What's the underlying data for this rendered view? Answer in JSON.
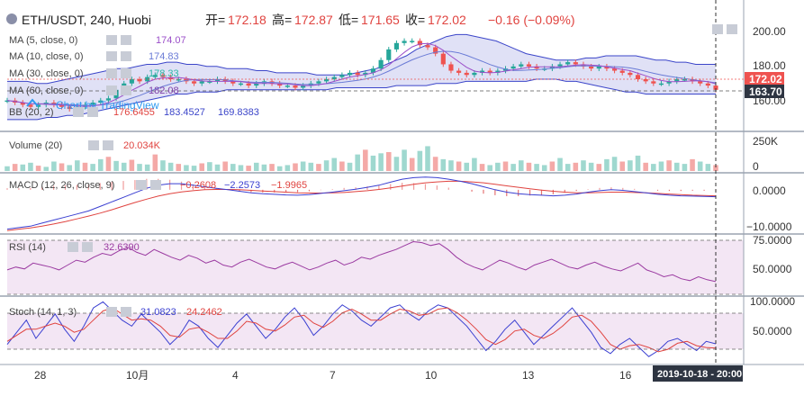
{
  "header": {
    "symbol": "ETH/USDT, 240, Huobi",
    "open_label": "开=",
    "open": "172.18",
    "high_label": "高=",
    "high": "172.87",
    "low_label": "低=",
    "low": "171.65",
    "close_label": "收=",
    "close": "172.02",
    "change": "−0.16 (−0.09%)"
  },
  "indicators": [
    {
      "label": "MA (5, close, 0)",
      "value": "174.07",
      "color": "#9b4fc9"
    },
    {
      "label": "MA (10, close, 0)",
      "value": "174.83",
      "color": "#6a7bd6"
    },
    {
      "label": "MA (30, close, 0)",
      "value": "178.33",
      "color": "#2db8a6"
    },
    {
      "label": "MA (60, close, 0)",
      "value": "182.08",
      "color": "#7e3fa8"
    }
  ],
  "bb": {
    "label": "BB (20, 2)",
    "v1": "176.6455",
    "v2": "183.4527",
    "v3": "169.8383"
  },
  "watermark": "Chart by TradingView",
  "price_axis": {
    "ticks": [
      "200.00",
      "180.00",
      "160.00"
    ],
    "tick_values": [
      200,
      180,
      160
    ],
    "last_price": "172.02",
    "cursor_price": "163.70"
  },
  "volume": {
    "label": "Volume (20)",
    "value": "20.034K",
    "ticks": [
      "250K",
      "0"
    ]
  },
  "macd": {
    "label": "MACD (12, 26, close, 9)",
    "v1": "−0.2608",
    "v2": "−2.2573",
    "v3": "−1.9965",
    "ticks": [
      "0.0000",
      "−10.0000"
    ]
  },
  "rsi": {
    "label": "RSI (14)",
    "value": "32.6390",
    "ticks": [
      "75.0000",
      "50.0000"
    ]
  },
  "stoch": {
    "label": "Stoch (14, 1, 3)",
    "v1": "31.0823",
    "v2": "24.2462",
    "ticks": [
      "100.0000",
      "50.0000"
    ]
  },
  "time_axis": {
    "ticks": [
      "28",
      "10月",
      "4",
      "7",
      "10",
      "13",
      "16"
    ],
    "cursor_label": "2019-10-18 - 20:00"
  },
  "colors": {
    "up": "#26a69a",
    "down": "#ef5350",
    "bb_fill": "#c7c9ee",
    "bb_line": "#3b45c9",
    "rsi_bg": "#f3e6f4",
    "stoch_bg": "#f3e6f4",
    "macd_line": "#3a3fd1",
    "signal_line": "#e0433f"
  },
  "chart_data": {
    "type": "line",
    "x_ticks": [
      "28",
      "10月",
      "4",
      "7",
      "10",
      "13",
      "16"
    ],
    "price": {
      "ylim": [
        155,
        210
      ],
      "close": [
        167,
        166,
        165,
        164,
        165,
        166,
        165,
        164,
        163,
        164,
        165,
        166,
        167,
        168,
        172,
        175,
        177,
        176,
        178,
        179,
        178,
        177,
        177,
        176,
        175,
        176,
        176,
        177,
        176,
        175,
        175,
        174,
        175,
        176,
        175,
        174,
        174,
        173,
        174,
        175,
        176,
        177,
        178,
        179,
        180,
        179,
        180,
        182,
        186,
        191,
        194,
        195,
        195,
        193,
        192,
        189,
        184,
        181,
        180,
        179,
        180,
        181,
        180,
        181,
        182,
        183,
        184,
        183,
        182,
        182,
        183,
        184,
        185,
        184,
        183,
        182,
        183,
        182,
        181,
        180,
        179,
        177,
        176,
        175,
        175,
        176,
        177,
        177,
        176,
        175,
        174,
        172
      ],
      "bb_upper": [
        176,
        176,
        176,
        175,
        175,
        176,
        177,
        178,
        179,
        180,
        181,
        182,
        182,
        183,
        184,
        184,
        185,
        185,
        184,
        184,
        183,
        183,
        182,
        182,
        182,
        181,
        181,
        180,
        180,
        180,
        180,
        179,
        179,
        179,
        179,
        180,
        181,
        182,
        184,
        186,
        188,
        191,
        193,
        195,
        197,
        198,
        198,
        197,
        196,
        195,
        193,
        191,
        189,
        188,
        187,
        186,
        186,
        186,
        187,
        187,
        188,
        188,
        188,
        188,
        187,
        186,
        186,
        185,
        185,
        184,
        184,
        184
      ],
      "bb_lower": [
        158,
        158,
        158,
        158,
        159,
        159,
        160,
        160,
        161,
        162,
        163,
        164,
        165,
        166,
        167,
        168,
        169,
        170,
        170,
        171,
        171,
        171,
        172,
        172,
        172,
        172,
        172,
        172,
        172,
        172,
        172,
        172,
        172,
        173,
        173,
        173,
        173,
        173,
        173,
        174,
        174,
        174,
        174,
        175,
        175,
        175,
        176,
        176,
        176,
        176,
        176,
        176,
        176,
        177,
        177,
        177,
        176,
        176,
        175,
        174,
        173,
        172,
        171,
        171,
        170,
        170,
        170,
        170,
        170,
        170,
        170,
        170
      ]
    },
    "volume": {
      "ylim": [
        0,
        320
      ],
      "values": [
        40,
        60,
        55,
        70,
        45,
        35,
        80,
        65,
        50,
        90,
        70,
        60,
        100,
        120,
        85,
        70,
        95,
        60,
        55,
        140,
        90,
        70,
        60,
        50,
        45,
        65,
        75,
        55,
        80,
        60,
        50,
        45,
        70,
        55,
        60,
        40,
        50,
        65,
        80,
        70,
        60,
        90,
        110,
        80,
        70,
        140,
        180,
        130,
        150,
        160,
        120,
        180,
        110,
        170,
        210,
        120,
        100,
        90,
        80,
        70,
        110,
        60,
        50,
        70,
        80,
        60,
        90,
        70,
        60,
        50,
        80,
        110,
        60,
        70,
        90,
        70,
        60,
        100,
        120,
        80,
        90,
        130,
        70,
        60,
        80,
        90,
        70,
        60,
        100,
        80,
        60,
        50
      ]
    },
    "macd": {
      "ylim": [
        -14,
        5
      ],
      "macd": [
        -13,
        -12.5,
        -12,
        -11,
        -10,
        -9,
        -8,
        -7,
        -5.5,
        -4,
        -2.5,
        -1,
        0.5,
        1.5,
        2,
        2,
        1.5,
        1,
        0.5,
        0,
        -0.5,
        -1,
        -1.3,
        -1.5,
        -1.7,
        -1.8,
        -1.6,
        -1.2,
        -0.8,
        -0.3,
        0.2,
        0.8,
        1.5,
        2.5,
        3.5,
        4,
        4.2,
        4,
        3.5,
        2.8,
        2,
        1,
        0,
        -0.8,
        -1.3,
        -1.6,
        -1.8,
        -2,
        -1.8,
        -1.4,
        -0.8,
        -0.3,
        0,
        -0.2,
        -0.6,
        -1,
        -1.5,
        -1.8,
        -2,
        -2.1,
        -2.2,
        -2.3
      ],
      "signal": [
        -13.5,
        -13,
        -12.6,
        -12,
        -11.3,
        -10.5,
        -9.6,
        -8.7,
        -7.7,
        -6.6,
        -5.4,
        -4.2,
        -3.1,
        -2.1,
        -1.3,
        -0.7,
        -0.3,
        0,
        0.1,
        0.1,
        0,
        -0.2,
        -0.4,
        -0.6,
        -0.8,
        -1,
        -1.1,
        -1.1,
        -1,
        -0.9,
        -0.6,
        -0.3,
        0.1,
        0.6,
        1.2,
        1.8,
        2.3,
        2.6,
        2.8,
        2.8,
        2.6,
        2.3,
        1.8,
        1.3,
        0.8,
        0.3,
        -0.1,
        -0.5,
        -0.8,
        -1,
        -1,
        -0.9,
        -0.8,
        -0.8,
        -0.9,
        -1,
        -1.2,
        -1.4,
        -1.6,
        -1.8,
        -1.9,
        -2
      ]
    },
    "rsi": {
      "ylim": [
        20,
        80
      ],
      "values": [
        45,
        48,
        46,
        52,
        50,
        48,
        45,
        50,
        55,
        53,
        58,
        62,
        60,
        65,
        68,
        63,
        60,
        66,
        62,
        58,
        55,
        60,
        57,
        52,
        55,
        50,
        48,
        53,
        56,
        52,
        48,
        46,
        50,
        53,
        49,
        45,
        48,
        52,
        55,
        50,
        53,
        58,
        56,
        60,
        63,
        66,
        70,
        74,
        73,
        70,
        72,
        66,
        58,
        52,
        48,
        45,
        50,
        55,
        52,
        48,
        45,
        50,
        53,
        56,
        52,
        48,
        46,
        50,
        53,
        49,
        46,
        44,
        48,
        52,
        45,
        42,
        38,
        40,
        36,
        34,
        38,
        35,
        33
      ]
    },
    "stoch": {
      "ylim": [
        0,
        105
      ],
      "k": [
        30,
        50,
        70,
        40,
        60,
        80,
        55,
        35,
        60,
        90,
        100,
        85,
        70,
        60,
        80,
        65,
        50,
        30,
        45,
        70,
        60,
        40,
        25,
        45,
        65,
        80,
        60,
        40,
        55,
        75,
        90,
        70,
        45,
        60,
        80,
        95,
        85,
        70,
        60,
        75,
        90,
        95,
        80,
        70,
        85,
        95,
        90,
        75,
        60,
        40,
        20,
        35,
        55,
        70,
        50,
        30,
        45,
        60,
        75,
        90,
        70,
        50,
        25,
        15,
        30,
        40,
        25,
        10,
        20,
        35,
        40,
        30,
        20,
        35,
        31
      ],
      "d": [
        35,
        45,
        55,
        55,
        60,
        65,
        60,
        50,
        55,
        70,
        85,
        90,
        80,
        70,
        72,
        70,
        60,
        45,
        42,
        55,
        58,
        50,
        40,
        40,
        52,
        68,
        65,
        55,
        52,
        62,
        75,
        78,
        65,
        58,
        68,
        82,
        88,
        80,
        70,
        70,
        80,
        88,
        85,
        78,
        80,
        88,
        90,
        82,
        70,
        55,
        38,
        30,
        38,
        52,
        55,
        45,
        40,
        48,
        60,
        75,
        78,
        68,
        50,
        30,
        22,
        28,
        30,
        25,
        18,
        22,
        32,
        35,
        28,
        25,
        24
      ]
    }
  }
}
